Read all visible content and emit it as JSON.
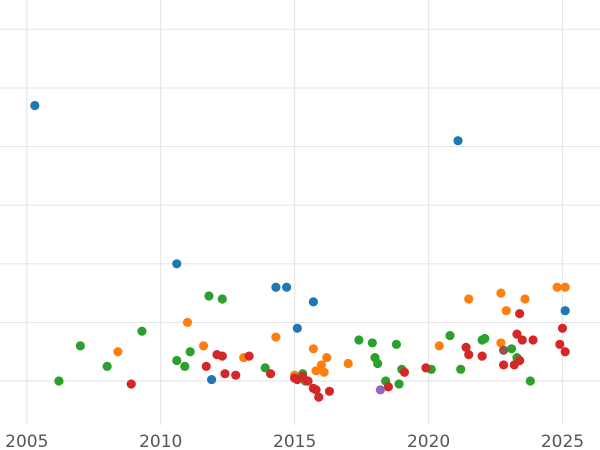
{
  "chart_data": {
    "type": "scatter",
    "title": "",
    "xlabel": "",
    "ylabel": "",
    "xlim": [
      2004.0,
      2026.4
    ],
    "ylim": [
      -1.5,
      13.0
    ],
    "x_ticks": [
      2005,
      2010,
      2015,
      2020,
      2025
    ],
    "x_tick_labels": [
      "2005",
      "2010",
      "2015",
      "2020",
      "2025"
    ],
    "y_gridlines": [
      0,
      2,
      4,
      6,
      8,
      10,
      12
    ],
    "grid": true,
    "legend": "none",
    "series": [
      {
        "color": "#1f77b4",
        "points": [
          [
            2005.3,
            9.4
          ],
          [
            2010.6,
            4.0
          ],
          [
            2011.9,
            0.05
          ],
          [
            2014.3,
            3.2
          ],
          [
            2014.7,
            3.2
          ],
          [
            2015.1,
            1.8
          ],
          [
            2015.7,
            2.7
          ],
          [
            2021.1,
            8.2
          ],
          [
            2025.1,
            2.4
          ]
        ]
      },
      {
        "color": "#ff7f0e",
        "points": [
          [
            2008.4,
            1.0
          ],
          [
            2011.0,
            2.0
          ],
          [
            2011.6,
            1.2
          ],
          [
            2013.1,
            0.8
          ],
          [
            2014.3,
            1.5
          ],
          [
            2015.0,
            0.2
          ],
          [
            2015.7,
            1.1
          ],
          [
            2015.8,
            0.35
          ],
          [
            2016.0,
            0.55
          ],
          [
            2016.1,
            0.3
          ],
          [
            2016.2,
            0.8
          ],
          [
            2017.0,
            0.6
          ],
          [
            2020.4,
            1.2
          ],
          [
            2021.5,
            2.8
          ],
          [
            2022.7,
            1.3
          ],
          [
            2022.7,
            3.0
          ],
          [
            2022.9,
            2.4
          ],
          [
            2023.6,
            2.8
          ],
          [
            2024.8,
            3.2
          ],
          [
            2025.1,
            3.2
          ]
        ]
      },
      {
        "color": "#2ca02c",
        "points": [
          [
            2006.2,
            0.0
          ],
          [
            2007.0,
            1.2
          ],
          [
            2008.0,
            0.5
          ],
          [
            2009.3,
            1.7
          ],
          [
            2010.6,
            0.7
          ],
          [
            2010.9,
            0.5
          ],
          [
            2011.1,
            1.0
          ],
          [
            2011.8,
            2.9
          ],
          [
            2012.3,
            2.8
          ],
          [
            2013.9,
            0.45
          ],
          [
            2015.3,
            0.25
          ],
          [
            2015.4,
            0.0
          ],
          [
            2017.4,
            1.4
          ],
          [
            2017.9,
            1.3
          ],
          [
            2018.0,
            0.8
          ],
          [
            2018.1,
            0.6
          ],
          [
            2018.4,
            0.0
          ],
          [
            2018.8,
            1.25
          ],
          [
            2018.9,
            -0.1
          ],
          [
            2019.0,
            0.4
          ],
          [
            2020.1,
            0.4
          ],
          [
            2020.8,
            1.55
          ],
          [
            2021.2,
            0.4
          ],
          [
            2022.0,
            1.4
          ],
          [
            2022.1,
            1.45
          ],
          [
            2023.1,
            1.1
          ],
          [
            2023.3,
            0.8
          ],
          [
            2023.8,
            0.0
          ]
        ]
      },
      {
        "color": "#d62728",
        "points": [
          [
            2008.9,
            -0.1
          ],
          [
            2011.7,
            0.5
          ],
          [
            2012.1,
            0.9
          ],
          [
            2012.3,
            0.85
          ],
          [
            2012.4,
            0.25
          ],
          [
            2012.8,
            0.2
          ],
          [
            2013.3,
            0.85
          ],
          [
            2014.1,
            0.25
          ],
          [
            2015.0,
            0.1
          ],
          [
            2015.1,
            0.05
          ],
          [
            2015.3,
            0.15
          ],
          [
            2015.5,
            0.0
          ],
          [
            2015.7,
            -0.25
          ],
          [
            2015.8,
            -0.3
          ],
          [
            2015.9,
            -0.55
          ],
          [
            2016.3,
            -0.35
          ],
          [
            2018.5,
            -0.2
          ],
          [
            2019.1,
            0.3
          ],
          [
            2019.9,
            0.45
          ],
          [
            2021.4,
            1.15
          ],
          [
            2021.5,
            0.9
          ],
          [
            2022.0,
            0.85
          ],
          [
            2022.8,
            0.55
          ],
          [
            2023.2,
            0.55
          ],
          [
            2023.3,
            1.6
          ],
          [
            2023.4,
            0.7
          ],
          [
            2023.4,
            2.3
          ],
          [
            2023.5,
            1.4
          ],
          [
            2023.9,
            1.4
          ],
          [
            2024.9,
            1.25
          ],
          [
            2025.0,
            1.8
          ],
          [
            2025.1,
            1.0
          ]
        ]
      },
      {
        "color": "#9467bd",
        "points": [
          [
            2018.2,
            -0.3
          ]
        ]
      },
      {
        "color": "#8c564b",
        "points": [
          [
            2022.8,
            1.05
          ]
        ]
      }
    ]
  }
}
